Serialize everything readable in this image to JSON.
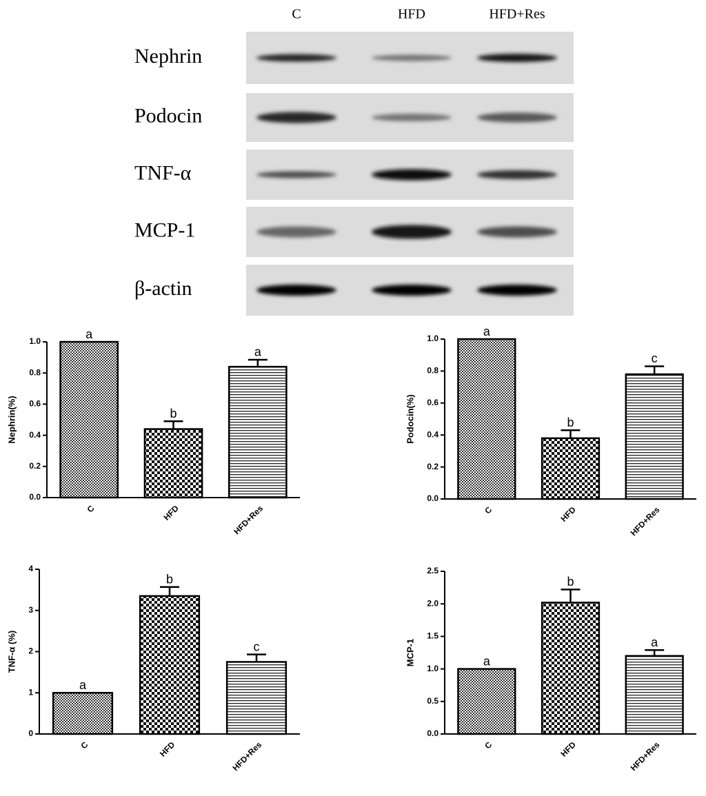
{
  "blot": {
    "lanes": [
      "C",
      "HFD",
      "HFD+Res"
    ],
    "rows": [
      "Nephrin",
      "Podocin",
      "TNF-α",
      "MCP-1",
      "β-actin"
    ]
  },
  "chart_data": [
    {
      "type": "bar",
      "ylabel": "Nephrin(%)",
      "categories": [
        "C",
        "HFD",
        "HFD+Res"
      ],
      "values": [
        1.0,
        0.44,
        0.84
      ],
      "errors": [
        null,
        0.05,
        0.045
      ],
      "annotations": [
        "a",
        "b",
        "a"
      ],
      "fill_patterns": [
        "dots",
        "checker",
        "hlines"
      ],
      "ylim": [
        0,
        1.0
      ],
      "yticks": [
        {
          "value": 0,
          "label": "0.0"
        },
        {
          "value": 0.2,
          "label": "0.2"
        },
        {
          "value": 0.4,
          "label": "0.4"
        },
        {
          "value": 0.6,
          "label": "0.6"
        },
        {
          "value": 0.8,
          "label": "0.8"
        },
        {
          "value": 1.0,
          "label": "1.0"
        }
      ]
    },
    {
      "type": "bar",
      "ylabel": "Podocin(%)",
      "categories": [
        "C",
        "HFD",
        "HFD+Res"
      ],
      "values": [
        1.0,
        0.38,
        0.78
      ],
      "errors": [
        null,
        0.05,
        0.05
      ],
      "annotations": [
        "a",
        "b",
        "c"
      ],
      "fill_patterns": [
        "dots",
        "checker",
        "hlines"
      ],
      "ylim": [
        0,
        1.0
      ],
      "yticks": [
        {
          "value": 0,
          "label": "0.0"
        },
        {
          "value": 0.2,
          "label": "0.2"
        },
        {
          "value": 0.4,
          "label": "0.4"
        },
        {
          "value": 0.6,
          "label": "0.6"
        },
        {
          "value": 0.8,
          "label": "0.8"
        },
        {
          "value": 1.0,
          "label": "1.0"
        }
      ]
    },
    {
      "type": "bar",
      "ylabel": "TNF-α (%)",
      "categories": [
        "C",
        "HFD",
        "HFD+Res"
      ],
      "values": [
        1.0,
        3.35,
        1.75
      ],
      "errors": [
        null,
        0.22,
        0.18
      ],
      "annotations": [
        "a",
        "b",
        "c"
      ],
      "fill_patterns": [
        "dots",
        "checker",
        "hlines"
      ],
      "ylim": [
        0,
        4
      ],
      "yticks": [
        0,
        1,
        2,
        3,
        4
      ]
    },
    {
      "type": "bar",
      "ylabel": "MCP-1",
      "categories": [
        "C",
        "HFD",
        "HFD+Res"
      ],
      "values": [
        1.0,
        2.02,
        1.2
      ],
      "errors": [
        null,
        0.2,
        0.09
      ],
      "annotations": [
        "a",
        "b",
        "a"
      ],
      "fill_patterns": [
        "dots",
        "checker",
        "hlines"
      ],
      "ylim": [
        0,
        2.5
      ],
      "yticks": [
        {
          "value": 0,
          "label": "0.0"
        },
        {
          "value": 0.5,
          "label": "0.5"
        },
        {
          "value": 1.0,
          "label": "1.0"
        },
        {
          "value": 1.5,
          "label": "1.5"
        },
        {
          "value": 2.0,
          "label": "2.0"
        },
        {
          "value": 2.5,
          "label": "2.5"
        }
      ]
    }
  ]
}
